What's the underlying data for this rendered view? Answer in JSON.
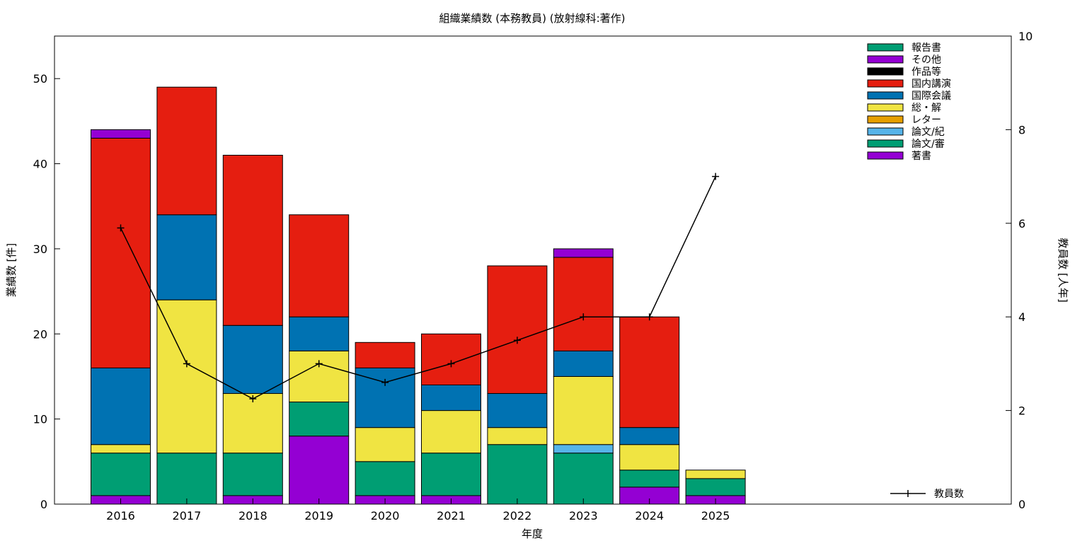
{
  "chart_data": {
    "type": "bar",
    "stacked": true,
    "title": "組織業績数 (本務教員) (放射線科:著作)",
    "xlabel": "年度",
    "ylabel": "業績数 [件]",
    "y2label": "教員数 [人年]",
    "categories": [
      "2016",
      "2017",
      "2018",
      "2019",
      "2020",
      "2021",
      "2022",
      "2023",
      "2024",
      "2025"
    ],
    "ylim": [
      0,
      55
    ],
    "yticks": [
      0,
      10,
      20,
      30,
      40,
      50
    ],
    "y2lim": [
      0,
      10
    ],
    "y2ticks": [
      0,
      2,
      4,
      6,
      8,
      10
    ],
    "legend_position": "top-right",
    "series": [
      {
        "name": "著書",
        "color": "#9400d3",
        "values": [
          1,
          0,
          1,
          8,
          1,
          1,
          0,
          0,
          2,
          1
        ]
      },
      {
        "name": "論文/審",
        "color": "#009e73",
        "values": [
          5,
          6,
          5,
          4,
          4,
          5,
          7,
          6,
          2,
          2
        ]
      },
      {
        "name": "論文/紀",
        "color": "#56b4e9",
        "values": [
          0,
          0,
          0,
          0,
          0,
          0,
          0,
          1,
          0,
          0
        ]
      },
      {
        "name": "レター",
        "color": "#e69f00",
        "values": [
          0,
          0,
          0,
          0,
          0,
          0,
          0,
          0,
          0,
          0
        ]
      },
      {
        "name": "総・解",
        "color": "#f0e442",
        "values": [
          1,
          18,
          7,
          6,
          4,
          5,
          2,
          8,
          3,
          1
        ]
      },
      {
        "name": "国際会議",
        "color": "#0072b2",
        "values": [
          9,
          10,
          8,
          4,
          7,
          3,
          4,
          3,
          2,
          0
        ]
      },
      {
        "name": "国内講演",
        "color": "#e51e10",
        "values": [
          27,
          15,
          20,
          12,
          3,
          6,
          15,
          11,
          13,
          0
        ]
      },
      {
        "name": "作品等",
        "color": "#000000",
        "values": [
          0,
          0,
          0,
          0,
          0,
          0,
          0,
          0,
          0,
          0
        ]
      },
      {
        "name": "その他",
        "color": "#9400d3",
        "values": [
          1,
          0,
          0,
          0,
          0,
          0,
          0,
          1,
          0,
          0
        ]
      },
      {
        "name": "報告書",
        "color": "#009e73",
        "values": [
          0,
          0,
          0,
          0,
          0,
          0,
          0,
          0,
          0,
          0
        ]
      }
    ],
    "line_series": {
      "name": "教員数",
      "color": "#000000",
      "axis": "y2",
      "values": [
        5.9,
        3.0,
        2.25,
        3.0,
        2.6,
        3.0,
        3.5,
        4.0,
        4.0,
        7.0
      ]
    }
  }
}
